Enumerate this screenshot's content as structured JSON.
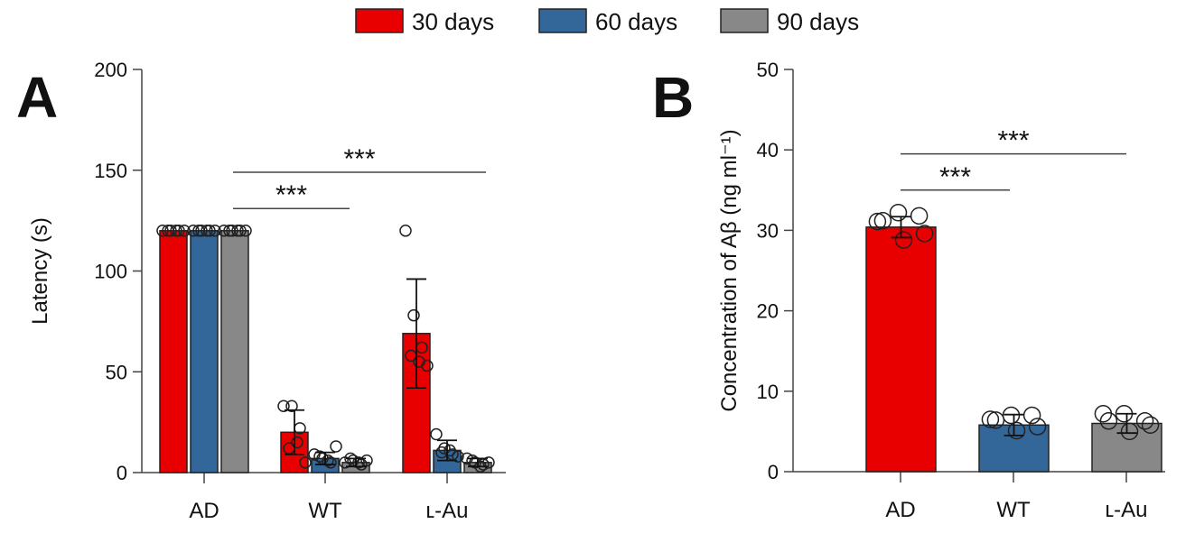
{
  "legend": {
    "position": "top-center",
    "items": [
      {
        "name": "30 days",
        "color": "#e80000"
      },
      {
        "name": "60 days",
        "color": "#336699"
      },
      {
        "name": "90 days",
        "color": "#888888"
      }
    ]
  },
  "chart_data": [
    {
      "type": "bar",
      "panel_label": "A",
      "ylabel": "Latency (s)",
      "ylim": [
        0,
        200
      ],
      "yticks": [
        "0",
        "50",
        "100",
        "150",
        "200"
      ],
      "categories": [
        "AD",
        "WT",
        "L-Au"
      ],
      "category_display": [
        "AD",
        "WT",
        "ʟ-Au"
      ],
      "series": [
        {
          "name": "30 days",
          "color": "#e80000",
          "values": [
            120,
            20,
            69
          ],
          "error": [
            0,
            11,
            27
          ],
          "points": [
            [
              120,
              120,
              120,
              120,
              120,
              120
            ],
            [
              33,
              33,
              22,
              12,
              15,
              5
            ],
            [
              120,
              78,
              62,
              58,
              55,
              53
            ]
          ]
        },
        {
          "name": "60 days",
          "color": "#336699",
          "values": [
            120,
            7,
            11
          ],
          "error": [
            0,
            3,
            5
          ],
          "points": [
            [
              120,
              120,
              120,
              120,
              120,
              120
            ],
            [
              9,
              7,
              5,
              8,
              6,
              13
            ],
            [
              19,
              12,
              9,
              10,
              11,
              8
            ]
          ]
        },
        {
          "name": "90 days",
          "color": "#888888",
          "values": [
            120,
            5,
            5
          ],
          "error": [
            0,
            2,
            2
          ],
          "points": [
            [
              120,
              120,
              120,
              120,
              120,
              120
            ],
            [
              5,
              6,
              4,
              7,
              5,
              6
            ],
            [
              7,
              5,
              4,
              6,
              3,
              5
            ]
          ]
        }
      ],
      "significance": [
        {
          "from": "AD",
          "to": "WT",
          "label": "***",
          "y": 131
        },
        {
          "from": "AD",
          "to": "L-Au",
          "label": "***",
          "y": 149
        }
      ]
    },
    {
      "type": "bar",
      "panel_label": "B",
      "ylabel": "Concentration of Aβ (ng ml⁻¹)",
      "ylim": [
        0,
        50
      ],
      "yticks": [
        "0",
        "10",
        "20",
        "30",
        "40",
        "50"
      ],
      "categories": [
        "AD",
        "WT",
        "L-Au"
      ],
      "category_display": [
        "AD",
        "WT",
        "ʟ-Au"
      ],
      "colors": [
        "#e80000",
        "#336699",
        "#888888"
      ],
      "values": [
        30.4,
        5.8,
        6.0
      ],
      "error": [
        1.3,
        1.3,
        1.2
      ],
      "points": [
        [
          31.1,
          32.2,
          31.8,
          31.2,
          28.8,
          29.6
        ],
        [
          6.5,
          7.0,
          7.0,
          6.4,
          5.1,
          5.6
        ],
        [
          7.2,
          7.2,
          6.3,
          6.3,
          5.0,
          5.8
        ]
      ],
      "significance": [
        {
          "from": "AD",
          "to": "WT",
          "label": "***",
          "y": 35
        },
        {
          "from": "AD",
          "to": "L-Au",
          "label": "***",
          "y": 39.5
        }
      ]
    }
  ]
}
